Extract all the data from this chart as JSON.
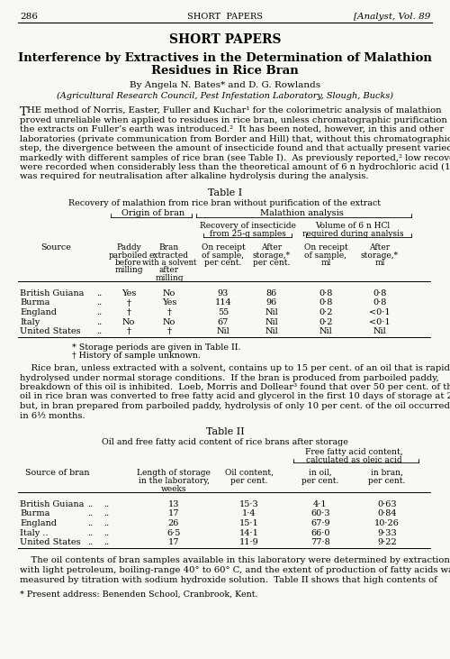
{
  "page_num": "286",
  "header_center": "SHORT  PAPERS",
  "header_right": "[Analyst, Vol. 89",
  "section_title": "SHORT PAPERS",
  "paper_title_line1": "Interference by Extractives in the Determination of Malathion",
  "paper_title_line2": "Residues in Rice Bran",
  "authors": "By Angela N. Bates* and D. G. Rowlands",
  "affiliation": "(Agricultural Research Council, Pest Infestation Laboratory, Slough, Bucks)",
  "table1_title": "Table I",
  "table1_caption": "Recovery of malathion from rice bran without purification of the extract",
  "table1_data": [
    [
      "British Guiana",
      "..",
      "Yes",
      "No",
      "93",
      "86",
      "0·8",
      "0·8"
    ],
    [
      "Burma",
      "..",
      "†",
      "Yes",
      "114",
      "96",
      "0·8",
      "0·8"
    ],
    [
      "England",
      "..",
      "†",
      "†",
      "55",
      "Nil",
      "0·2",
      "<0·1"
    ],
    [
      "Italy",
      "..",
      "No",
      "No",
      "67",
      "Nil",
      "0·2",
      "<0·1"
    ],
    [
      "United States",
      "..",
      "†",
      "†",
      "Nil",
      "Nil",
      "Nil",
      "Nil"
    ]
  ],
  "table1_footnote1": "* Storage periods are given in Table II.",
  "table1_footnote2": "† History of sample unknown.",
  "table2_title": "Table II",
  "table2_caption": "Oil and free fatty acid content of rice brans after storage",
  "table2_data": [
    [
      "British Guiana",
      "..",
      "..",
      "13",
      "15·3",
      "4·1",
      "0·63"
    ],
    [
      "Burma",
      "..",
      "..",
      "17",
      "1·4",
      "60·3",
      "0·84"
    ],
    [
      "England",
      "..",
      "..",
      "26",
      "15·1",
      "67·9",
      "10·26"
    ],
    [
      "Italy ..",
      "..",
      "..",
      "6·5",
      "14·1",
      "66·0",
      "9·33"
    ],
    [
      "United States",
      "..",
      "..",
      "17",
      "11·9",
      "77·8",
      "9·22"
    ]
  ],
  "footnote_star": "* Present address: Benenden School, Cranbrook, Kent.",
  "bg_color": "#f8f8f4"
}
